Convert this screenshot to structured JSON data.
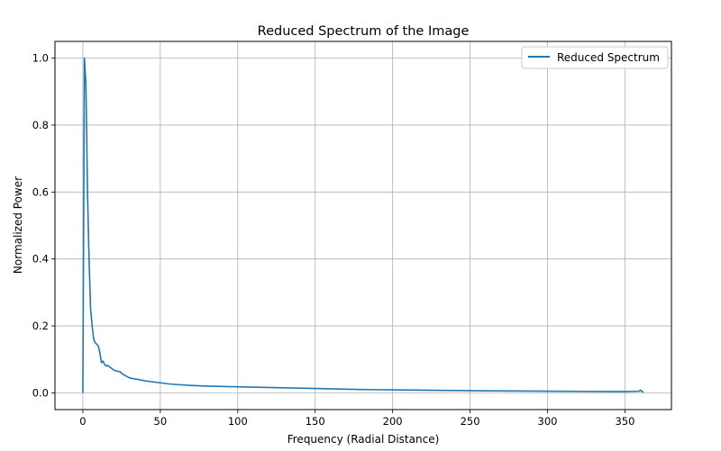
{
  "chart_data": {
    "type": "line",
    "title": "Reduced Spectrum of the Image",
    "xlabel": "Frequency (Radial Distance)",
    "ylabel": "Normalized Power",
    "xlim": [
      -18,
      380
    ],
    "ylim": [
      -0.05,
      1.05
    ],
    "x_ticks": [
      0,
      50,
      100,
      150,
      200,
      250,
      300,
      350
    ],
    "y_ticks": [
      0.0,
      0.2,
      0.4,
      0.6,
      0.8,
      1.0
    ],
    "x_tick_labels": [
      "0",
      "50",
      "100",
      "150",
      "200",
      "250",
      "300",
      "350"
    ],
    "y_tick_labels": [
      "0.0",
      "0.2",
      "0.4",
      "0.6",
      "0.8",
      "1.0"
    ],
    "grid": true,
    "legend_position": "top-right",
    "line_color": "#1f77b4",
    "series": [
      {
        "name": "Reduced Spectrum",
        "x": [
          0,
          1,
          2,
          3,
          4,
          5,
          6,
          7,
          8,
          9,
          10,
          11,
          12,
          13,
          14,
          15,
          16,
          18,
          20,
          22,
          24,
          26,
          28,
          30,
          33,
          36,
          40,
          45,
          50,
          55,
          60,
          70,
          80,
          90,
          100,
          110,
          120,
          130,
          140,
          150,
          160,
          170,
          180,
          190,
          200,
          220,
          240,
          260,
          280,
          300,
          320,
          340,
          350,
          355,
          359,
          360,
          361,
          362
        ],
        "y": [
          0.0,
          1.0,
          0.92,
          0.6,
          0.4,
          0.25,
          0.2,
          0.16,
          0.15,
          0.145,
          0.14,
          0.12,
          0.09,
          0.095,
          0.085,
          0.08,
          0.082,
          0.075,
          0.068,
          0.065,
          0.063,
          0.055,
          0.05,
          0.045,
          0.042,
          0.04,
          0.036,
          0.033,
          0.03,
          0.027,
          0.025,
          0.022,
          0.02,
          0.019,
          0.018,
          0.017,
          0.016,
          0.015,
          0.014,
          0.013,
          0.012,
          0.011,
          0.01,
          0.0095,
          0.009,
          0.008,
          0.007,
          0.006,
          0.0055,
          0.005,
          0.0045,
          0.004,
          0.004,
          0.0045,
          0.005,
          0.008,
          0.004,
          0.002
        ]
      }
    ]
  }
}
